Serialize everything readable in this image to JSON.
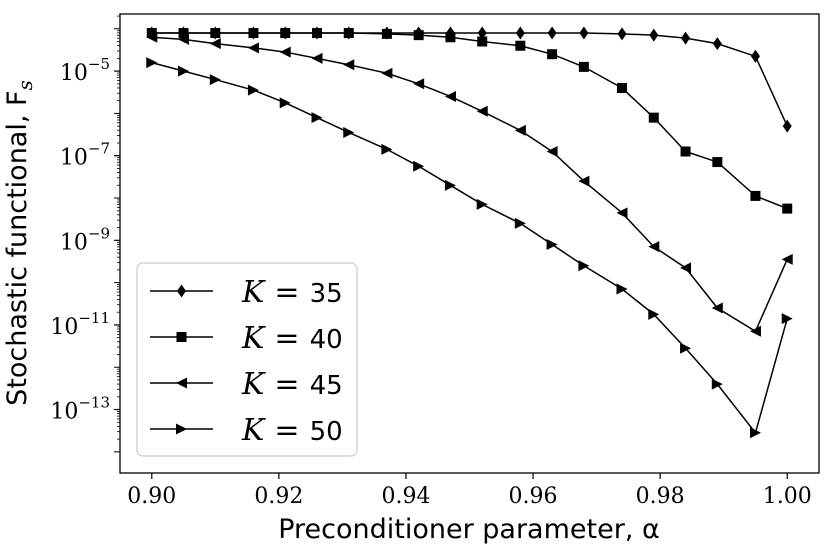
{
  "chart_data": {
    "type": "line",
    "title": "",
    "xlabel": "Preconditioner parameter, α",
    "ylabel": "Stochastic functional, F",
    "ylabel_subscript": "s",
    "xlim": [
      0.895,
      1.005
    ],
    "ylim_exponent": [
      -14.5,
      -3.65
    ],
    "yscale": "log",
    "x_ticks": [
      0.9,
      0.92,
      0.94,
      0.96,
      0.98,
      1.0
    ],
    "x_tick_labels": [
      "0.90",
      "0.92",
      "0.94",
      "0.96",
      "0.98",
      "1.00"
    ],
    "y_tick_exponents": [
      -5,
      -7,
      -9,
      -11,
      -13
    ],
    "y_tick_labels": [
      "10",
      "10",
      "10",
      "10",
      "10"
    ],
    "y_tick_superscripts": [
      "−5",
      "−7",
      "−9",
      "−11",
      "−13"
    ],
    "legend_position": "lower-left",
    "grid": false,
    "x": [
      0.9,
      0.905,
      0.91,
      0.916,
      0.921,
      0.926,
      0.931,
      0.937,
      0.942,
      0.947,
      0.952,
      0.958,
      0.963,
      0.968,
      0.974,
      0.979,
      0.984,
      0.989,
      0.995,
      1.0
    ],
    "series": [
      {
        "name": "K = 35",
        "legend_var": "K",
        "legend_op": "=",
        "legend_value": "35",
        "marker": "diamond",
        "log10_values": [
          -4.1,
          -4.1,
          -4.1,
          -4.1,
          -4.1,
          -4.1,
          -4.1,
          -4.1,
          -4.1,
          -4.1,
          -4.1,
          -4.1,
          -4.1,
          -4.1,
          -4.12,
          -4.15,
          -4.22,
          -4.35,
          -4.65,
          -6.3
        ]
      },
      {
        "name": "K = 40",
        "legend_var": "K",
        "legend_op": "=",
        "legend_value": "40",
        "marker": "square",
        "log10_values": [
          -4.1,
          -4.1,
          -4.1,
          -4.1,
          -4.1,
          -4.1,
          -4.1,
          -4.12,
          -4.15,
          -4.2,
          -4.3,
          -4.4,
          -4.6,
          -4.9,
          -5.4,
          -6.1,
          -6.9,
          -7.15,
          -7.95,
          -8.25
        ]
      },
      {
        "name": "K = 45",
        "legend_var": "K",
        "legend_op": "=",
        "legend_value": "45",
        "marker": "triangle-left",
        "log10_values": [
          -4.2,
          -4.25,
          -4.35,
          -4.45,
          -4.55,
          -4.7,
          -4.85,
          -5.05,
          -5.3,
          -5.6,
          -5.95,
          -6.4,
          -6.9,
          -7.6,
          -8.35,
          -9.15,
          -9.65,
          -10.6,
          -11.15,
          -9.45
        ]
      },
      {
        "name": "K = 50",
        "legend_var": "K",
        "legend_op": "=",
        "legend_value": "50",
        "marker": "triangle-right",
        "log10_values": [
          -4.8,
          -5.0,
          -5.2,
          -5.45,
          -5.75,
          -6.1,
          -6.45,
          -6.85,
          -7.25,
          -7.7,
          -8.15,
          -8.6,
          -9.1,
          -9.6,
          -10.15,
          -10.75,
          -11.55,
          -12.4,
          -13.55,
          -10.85
        ]
      }
    ]
  }
}
